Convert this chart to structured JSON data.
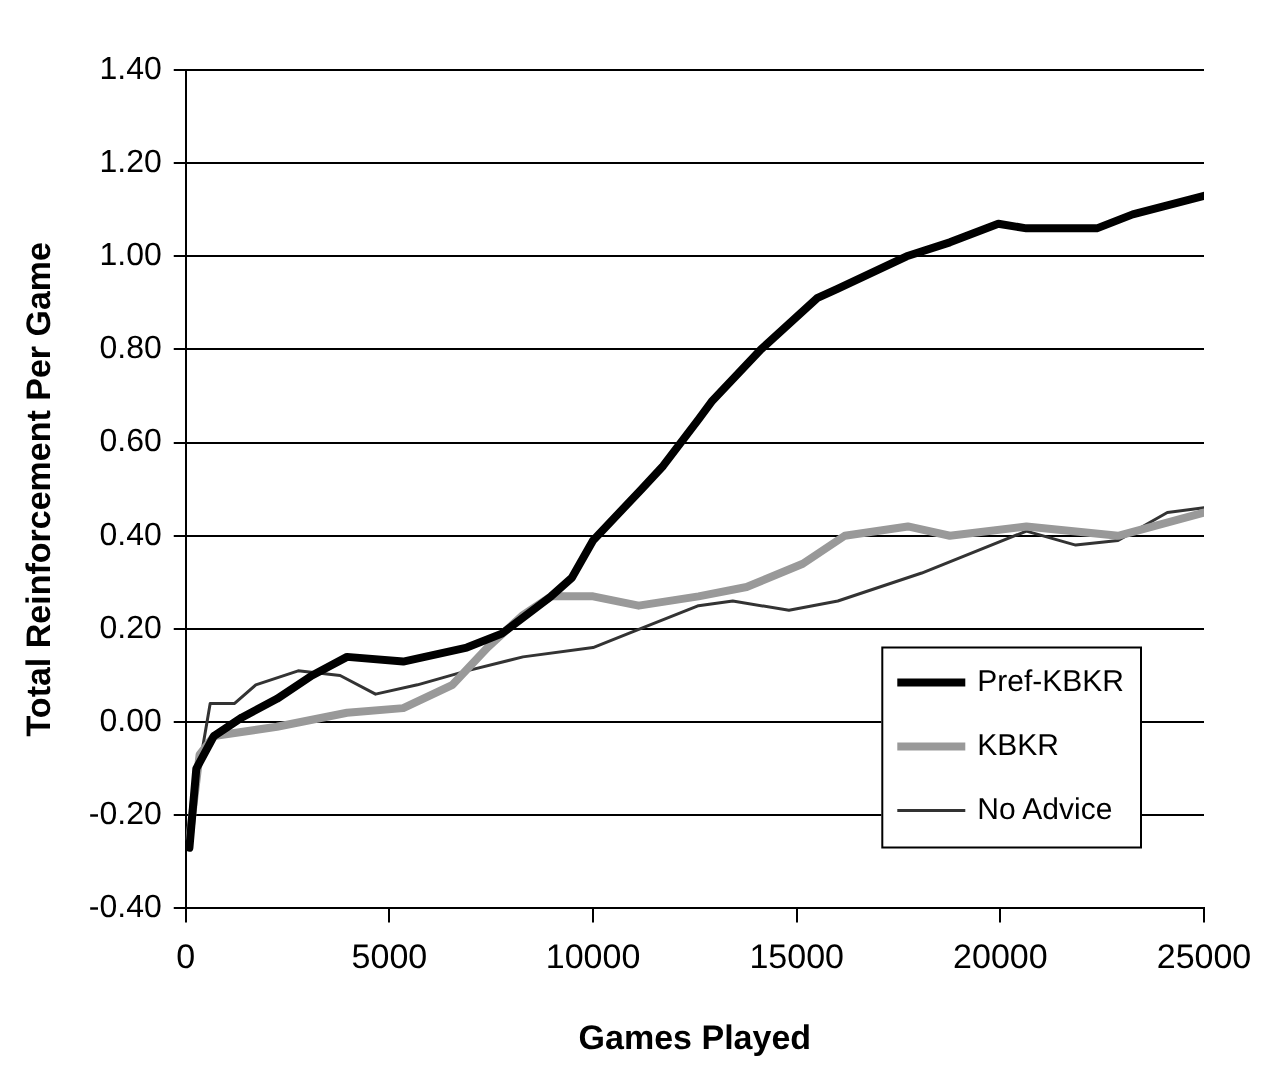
{
  "chart_data": {
    "type": "line",
    "xlabel": "Games Played",
    "ylabel": "Total Reinforcement Per Game",
    "xlim": [
      0,
      25000
    ],
    "xticks": [
      0,
      5000,
      10000,
      15000,
      20000,
      25000
    ],
    "ylim": [
      -0.4,
      1.4
    ],
    "yticks": [
      {
        "value": -0.4,
        "label": "-0.40"
      },
      {
        "value": -0.2,
        "label": "-0.20"
      },
      {
        "value": 0,
        "label": "0.00"
      },
      {
        "value": 0.2,
        "label": "0.20"
      },
      {
        "value": 0.4,
        "label": "0.40"
      },
      {
        "value": 0.6,
        "label": "0.60"
      },
      {
        "value": 0.8,
        "label": "0.80"
      },
      {
        "value": 1.0,
        "label": "1.00"
      },
      {
        "value": 1.2,
        "label": "1.20"
      },
      {
        "value": 1.4,
        "label": "1.40"
      }
    ],
    "grid": "y",
    "legend": "bottom right",
    "marker": "none",
    "line_style": "solid",
    "series": [
      {
        "name": "Pref-KBKR",
        "color": "#000000",
        "x": [
          90,
          260,
          690,
          1380,
          2240,
          3100,
          3960,
          5340,
          6900,
          7760,
          8970,
          9480,
          10000,
          11190,
          11720,
          12590,
          12930,
          14120,
          15500,
          16000,
          17700,
          18760,
          19950,
          20640,
          22370,
          23250,
          25000
        ],
        "values": [
          -0.27,
          -0.1,
          -0.03,
          0.01,
          0.05,
          0.1,
          0.14,
          0.13,
          0.16,
          0.19,
          0.27,
          0.31,
          0.39,
          0.5,
          0.55,
          0.65,
          0.69,
          0.8,
          0.91,
          0.93,
          1.0,
          1.03,
          1.07,
          1.06,
          1.06,
          1.09,
          1.13
        ]
      },
      {
        "name": "KBKR",
        "color": "#999999",
        "x": [
          90,
          340,
          690,
          2240,
          3960,
          5340,
          6550,
          7410,
          8280,
          8970,
          10000,
          11120,
          12590,
          13770,
          15150,
          16180,
          17730,
          18760,
          20640,
          22890,
          25000
        ],
        "values": [
          -0.25,
          -0.07,
          -0.03,
          -0.01,
          0.02,
          0.03,
          0.08,
          0.16,
          0.23,
          0.27,
          0.27,
          0.25,
          0.27,
          0.29,
          0.34,
          0.4,
          0.42,
          0.4,
          0.42,
          0.4,
          0.45
        ]
      },
      {
        "name": "No Advice",
        "color": "#333333",
        "x": [
          90,
          170,
          600,
          1200,
          1720,
          2760,
          3790,
          4660,
          5690,
          6900,
          8280,
          10000,
          10860,
          12590,
          13430,
          14810,
          16010,
          18070,
          20640,
          21850,
          22890,
          24100,
          25000
        ],
        "values": [
          -0.27,
          -0.18,
          0.04,
          0.04,
          0.08,
          0.11,
          0.1,
          0.06,
          0.08,
          0.11,
          0.14,
          0.16,
          0.19,
          0.25,
          0.26,
          0.24,
          0.26,
          0.32,
          0.41,
          0.38,
          0.39,
          0.45,
          0.46
        ]
      }
    ]
  }
}
